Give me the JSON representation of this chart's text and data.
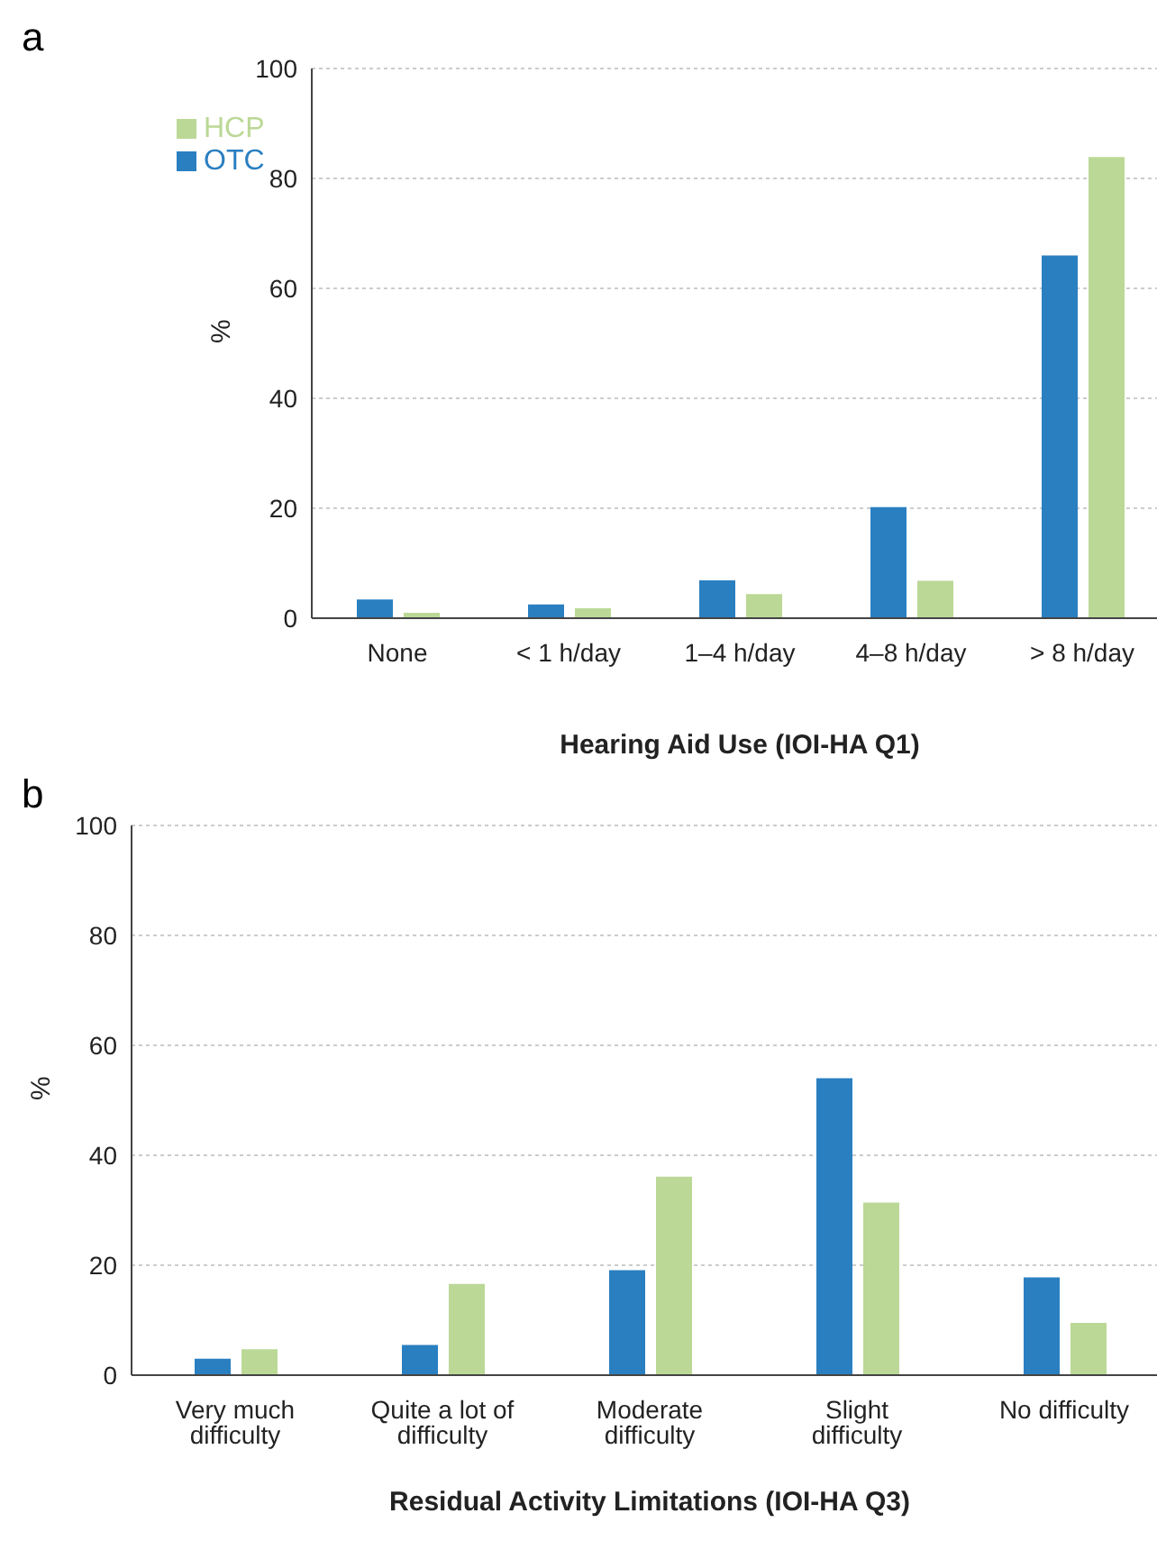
{
  "chart_data": [
    {
      "type": "bar",
      "title": "a",
      "xlabel": "Hearing Aid Use (IOI-HA Q1)",
      "ylabel": "%",
      "categories": [
        "None",
        "< 1 h/day",
        "1–4 h/day",
        "4–8 h/day",
        "> 8 h/day"
      ],
      "series": [
        {
          "name": "OTC",
          "color": "#2a7fc1",
          "values": [
            3.4,
            2.5,
            6.9,
            20.2,
            66.0
          ]
        },
        {
          "name": "HCP",
          "color": "#bbd896",
          "values": [
            1.0,
            1.8,
            4.4,
            6.8,
            83.9
          ]
        }
      ],
      "ylim": [
        0,
        100
      ],
      "yticks": [
        0,
        20,
        40,
        60,
        80,
        100
      ],
      "grid": "y",
      "legend": "top left"
    },
    {
      "type": "bar",
      "title": "b",
      "xlabel": "Residual Activity Limitations (IOI-HA Q3)",
      "ylabel": "%",
      "categories": [
        "Very much difficulty",
        "Quite a lot of difficulty",
        "Moderate difficulty",
        "Slight difficulty",
        "No difficulty"
      ],
      "series": [
        {
          "color": "#2a7fc1",
          "values": [
            3.0,
            5.5,
            19.1,
            54.0,
            17.8
          ]
        },
        {
          "color": "#bbd896",
          "values": [
            4.7,
            16.6,
            36.1,
            31.4,
            9.5
          ]
        }
      ],
      "ylim": [
        0,
        100
      ],
      "yticks": [
        0,
        20,
        40,
        60,
        80,
        100
      ],
      "grid": "y"
    }
  ]
}
